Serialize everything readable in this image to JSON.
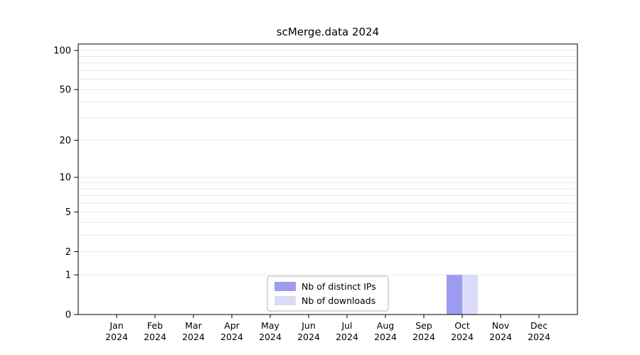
{
  "chart_data": {
    "type": "bar",
    "title": "scMerge.data 2024",
    "categories": [
      "Jan",
      "Feb",
      "Mar",
      "Apr",
      "May",
      "Jun",
      "Jul",
      "Aug",
      "Sep",
      "Oct",
      "Nov",
      "Dec"
    ],
    "year": "2024",
    "series": [
      {
        "name": "Nb of distinct IPs",
        "color": "#9c9cf0",
        "values": [
          0,
          0,
          0,
          0,
          0,
          0,
          0,
          0,
          0,
          1,
          0,
          0
        ]
      },
      {
        "name": "Nb of downloads",
        "color": "#dcdcf8",
        "values": [
          0,
          0,
          0,
          0,
          0,
          0,
          0,
          0,
          0,
          1,
          0,
          0
        ]
      }
    ],
    "y_ticks": [
      0,
      1,
      2,
      5,
      10,
      20,
      50,
      100
    ],
    "y_gridlines": [
      1,
      2,
      3,
      4,
      5,
      6,
      7,
      8,
      9,
      10,
      20,
      30,
      40,
      50,
      60,
      70,
      80,
      90,
      100
    ],
    "y_scale": "log1p",
    "ylim": [
      0,
      112
    ],
    "grid": true,
    "legend_position": "bottom-center",
    "colors": {
      "grid": "#e8e8e8",
      "axis": "#000000",
      "background": "#ffffff",
      "legend_border": "#b3b3b3",
      "legend_fill": "#ffffff"
    }
  }
}
